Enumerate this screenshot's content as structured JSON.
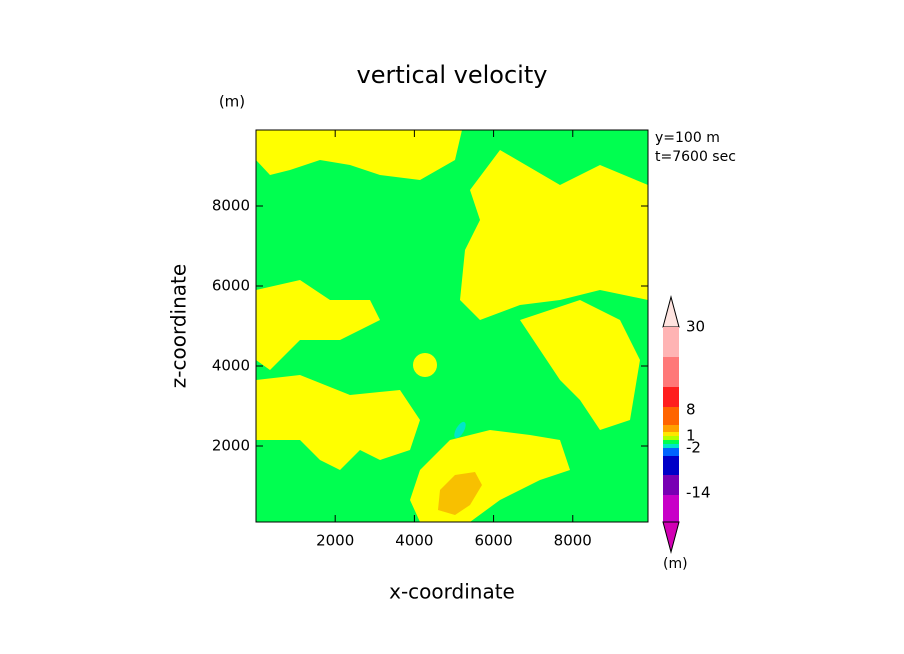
{
  "chart_data": {
    "type": "contour",
    "title": "vertical velocity",
    "y_unit": "(m)",
    "annotations": [
      "y=100 m",
      "t=7600 sec"
    ],
    "xlabel": "x-coordinate",
    "ylabel": "z-coordinate",
    "xlim": [
      0,
      9900
    ],
    "xticks": [
      2000,
      4000,
      6000,
      8000
    ],
    "ylim": [
      100,
      9900
    ],
    "yticks": [
      2000,
      4000,
      6000,
      8000
    ],
    "colorbar": {
      "unit": "(m)",
      "colors": [
        "#ffe4e0",
        "#ffb4b4",
        "#ff7878",
        "#ff1e1e",
        "#ff6400",
        "#ffa000",
        "#ffe600",
        "#b4ff00",
        "#00ff50",
        "#00e6c8",
        "#0064ff",
        "#0000c8",
        "#7800b4",
        "#c800c8",
        "#d200b4"
      ],
      "labels": [
        30,
        8,
        1,
        -2,
        -14
      ]
    }
  }
}
